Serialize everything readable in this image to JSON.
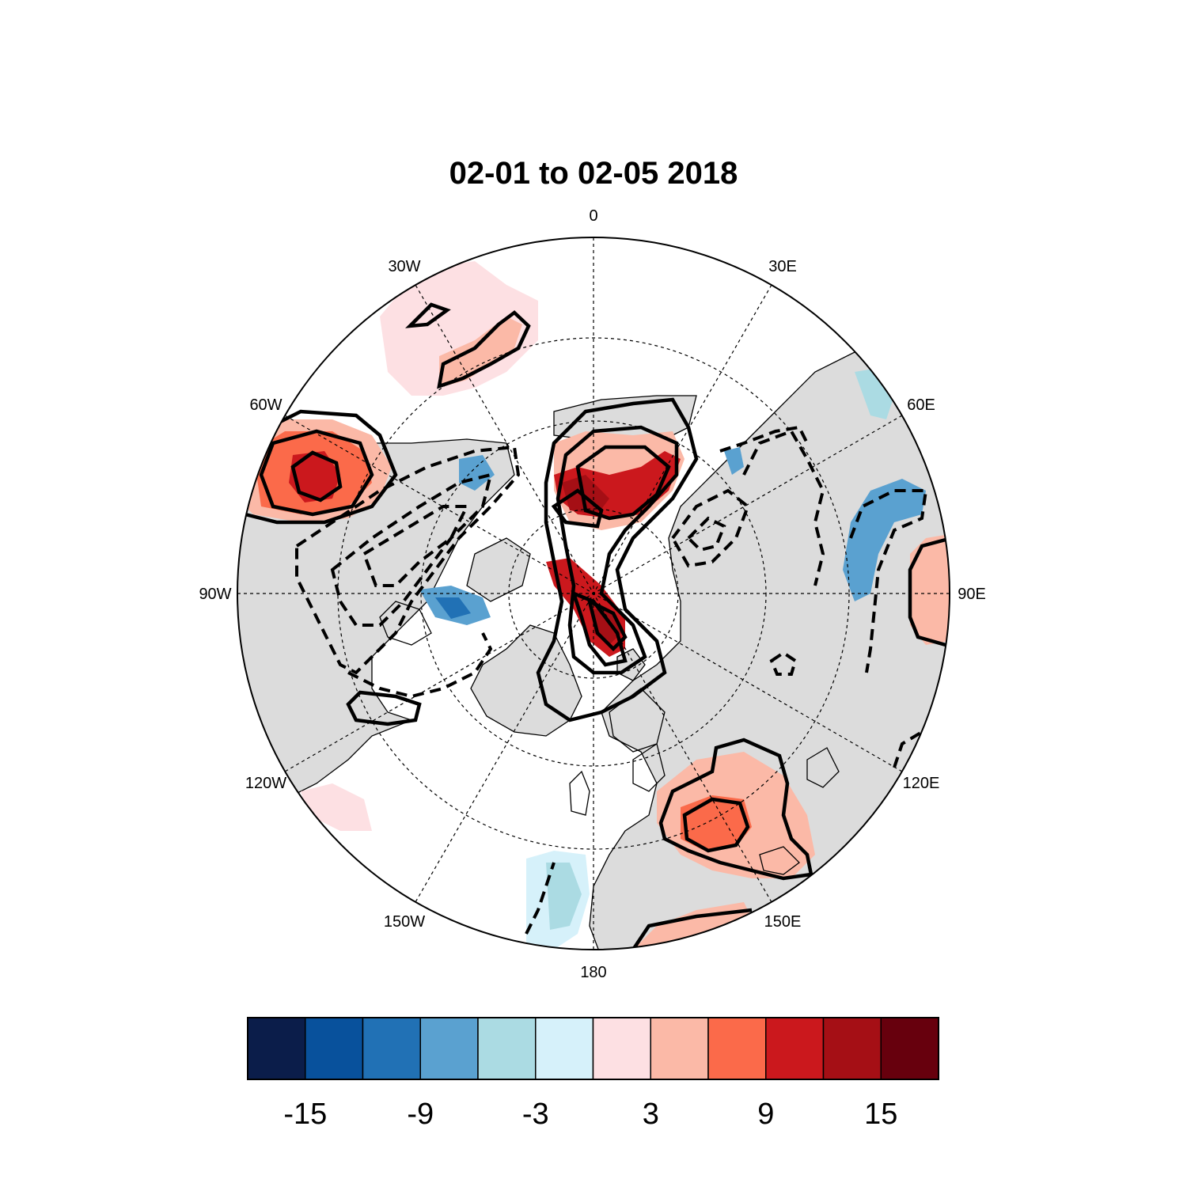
{
  "title": "02-01 to 02-05 2018",
  "map": {
    "projection": "north-polar-stereographic",
    "longitude_labels": [
      {
        "text": "180",
        "lon": 180
      },
      {
        "text": "150E",
        "lon": 150
      },
      {
        "text": "120E",
        "lon": 120
      },
      {
        "text": "90E",
        "lon": 90
      },
      {
        "text": "60E",
        "lon": 60
      },
      {
        "text": "30E",
        "lon": 30
      },
      {
        "text": "0",
        "lon": 0
      },
      {
        "text": "30W",
        "lon": -30
      },
      {
        "text": "60W",
        "lon": -60
      },
      {
        "text": "90W",
        "lon": -90
      },
      {
        "text": "120W",
        "lon": -120
      },
      {
        "text": "150W",
        "lon": -150
      }
    ],
    "latitude_circles": [
      80,
      60,
      40
    ],
    "colors": {
      "land": "#dcdcdc",
      "ocean": "#ffffff"
    },
    "contours": "solid lines positive, dashed lines negative"
  },
  "colorbar": {
    "colors": [
      "#0b1d4a",
      "#08519c",
      "#2171b5",
      "#5aa1d0",
      "#abdbe3",
      "#d6f1fa",
      "#fde0e3",
      "#fbb9a7",
      "#fb6a4a",
      "#cb181d",
      "#a50f15",
      "#67000d"
    ],
    "boundaries": [
      -18,
      -15,
      -12,
      -9,
      -6,
      -3,
      0,
      3,
      6,
      9,
      12,
      15,
      18
    ],
    "tick_labels": [
      {
        "text": "-15",
        "value": -15
      },
      {
        "text": "-9",
        "value": -9
      },
      {
        "text": "-3",
        "value": -3
      },
      {
        "text": "3",
        "value": 3
      },
      {
        "text": "9",
        "value": 9
      },
      {
        "text": "15",
        "value": 15
      }
    ]
  }
}
